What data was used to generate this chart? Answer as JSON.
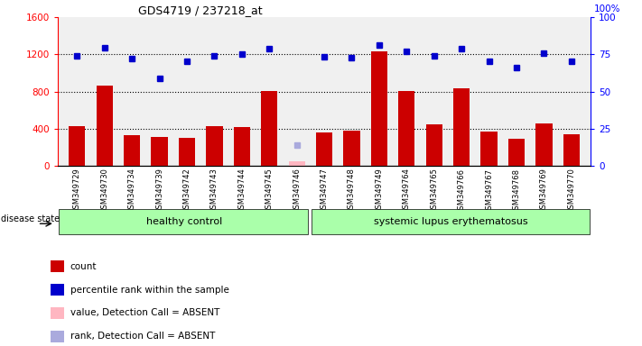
{
  "title": "GDS4719 / 237218_at",
  "samples": [
    "GSM349729",
    "GSM349730",
    "GSM349734",
    "GSM349739",
    "GSM349742",
    "GSM349743",
    "GSM349744",
    "GSM349745",
    "GSM349746",
    "GSM349747",
    "GSM349748",
    "GSM349749",
    "GSM349764",
    "GSM349765",
    "GSM349766",
    "GSM349767",
    "GSM349768",
    "GSM349769",
    "GSM349770"
  ],
  "counts": [
    430,
    870,
    330,
    310,
    300,
    430,
    420,
    810,
    null,
    360,
    380,
    1230,
    810,
    450,
    840,
    370,
    290,
    460,
    340
  ],
  "ranks": [
    1190,
    1270,
    1160,
    940,
    1130,
    1190,
    1200,
    1260,
    null,
    1180,
    1170,
    1300,
    1230,
    1190,
    1260,
    1130,
    1060,
    1210,
    1130
  ],
  "absent_index": 8,
  "absent_count": 50,
  "absent_rank": 230,
  "healthy_count": 9,
  "ylim_left": [
    0,
    1600
  ],
  "ylim_right": [
    0,
    100
  ],
  "yticks_left": [
    0,
    400,
    800,
    1200,
    1600
  ],
  "yticks_right": [
    0,
    25,
    50,
    75,
    100
  ],
  "bar_color": "#CC0000",
  "rank_color": "#0000CC",
  "absent_bar_color": "#FFB6C1",
  "absent_rank_color": "#AAAADD",
  "group_label_healthy": "healthy control",
  "group_label_lupus": "systemic lupus erythematosus",
  "group_color": "#AAFFAA",
  "disease_state_label": "disease state",
  "legend_items": [
    {
      "label": "count",
      "color": "#CC0000"
    },
    {
      "label": "percentile rank within the sample",
      "color": "#0000CC"
    },
    {
      "label": "value, Detection Call = ABSENT",
      "color": "#FFB6C1"
    },
    {
      "label": "rank, Detection Call = ABSENT",
      "color": "#AAAADD"
    }
  ],
  "plot_bg": "#F0F0F0",
  "grid_color": "black",
  "grid_lines": [
    400,
    800,
    1200
  ]
}
